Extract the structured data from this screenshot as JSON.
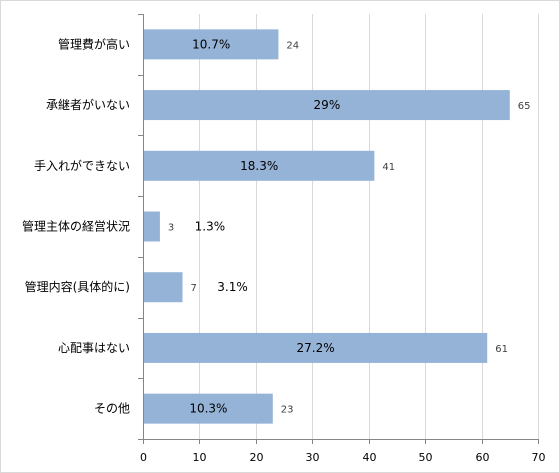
{
  "chart_data": {
    "type": "bar",
    "orientation": "horizontal",
    "categories": [
      "管理費が高い",
      "承継者がいない",
      "手入れができない",
      "管理主体の経営状況",
      "管理内容(具体的に)",
      "心配事はない",
      "その他"
    ],
    "values": [
      24,
      65,
      41,
      3,
      7,
      61,
      23
    ],
    "percent_labels": [
      "10.7%",
      "29%",
      "18.3%",
      "1.3%",
      "3.1%",
      "27.2%",
      "10.3%"
    ],
    "value_labels": [
      "24",
      "65",
      "41",
      "3",
      "7",
      "61",
      "23"
    ],
    "x_ticks": [
      "0",
      "10",
      "20",
      "30",
      "40",
      "50",
      "60",
      "70"
    ],
    "xlim": [
      0,
      70
    ],
    "grid": true,
    "colors": {
      "bar": "#95b3d7",
      "grid": "#d9d9d9",
      "axis": "#868686"
    }
  }
}
